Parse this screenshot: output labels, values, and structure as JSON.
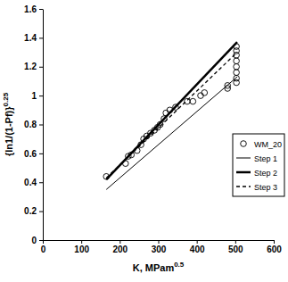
{
  "chart_data": {
    "type": "scatter",
    "xlabel": "K, MPam",
    "xlabel_superscript": "0.5",
    "ylabel": "{ln1/(1-Pf)}",
    "ylabel_superscript": "0.25",
    "xlim": [
      0,
      600
    ],
    "xticks": [
      0,
      100,
      200,
      300,
      400,
      500,
      600
    ],
    "ylim": [
      0,
      1.6
    ],
    "yticks": [
      0,
      0.2,
      0.4,
      0.6,
      0.8,
      1,
      1.2,
      1.4,
      1.6
    ],
    "grid": false,
    "legend": "lower right",
    "series": [
      {
        "name": "WM_20",
        "type": "scatter",
        "marker": "circle",
        "color": "#000000",
        "x": [
          165,
          215,
          222,
          230,
          245,
          255,
          262,
          270,
          280,
          290,
          298,
          305,
          315,
          320,
          330,
          345,
          375,
          390,
          410,
          420,
          480,
          480,
          503,
          503,
          503,
          503,
          503,
          503,
          503,
          503
        ],
        "values": [
          0.44,
          0.53,
          0.58,
          0.59,
          0.62,
          0.66,
          0.7,
          0.72,
          0.74,
          0.76,
          0.78,
          0.8,
          0.84,
          0.88,
          0.9,
          0.92,
          0.96,
          0.96,
          1.0,
          1.02,
          1.05,
          1.07,
          1.09,
          1.12,
          1.16,
          1.2,
          1.24,
          1.28,
          1.31,
          1.34
        ]
      },
      {
        "name": "Step 1",
        "type": "line",
        "line_style": "thin",
        "color": "#000000",
        "x": [
          165,
          505
        ],
        "values": [
          0.35,
          1.13
        ]
      },
      {
        "name": "Step 2",
        "type": "line",
        "line_style": "thick",
        "color": "#000000",
        "x": [
          165,
          505
        ],
        "values": [
          0.42,
          1.37
        ]
      },
      {
        "name": "Step 3",
        "type": "line",
        "line_style": "dashed",
        "color": "#000000",
        "x": [
          165,
          505
        ],
        "values": [
          0.43,
          1.3
        ]
      }
    ]
  }
}
